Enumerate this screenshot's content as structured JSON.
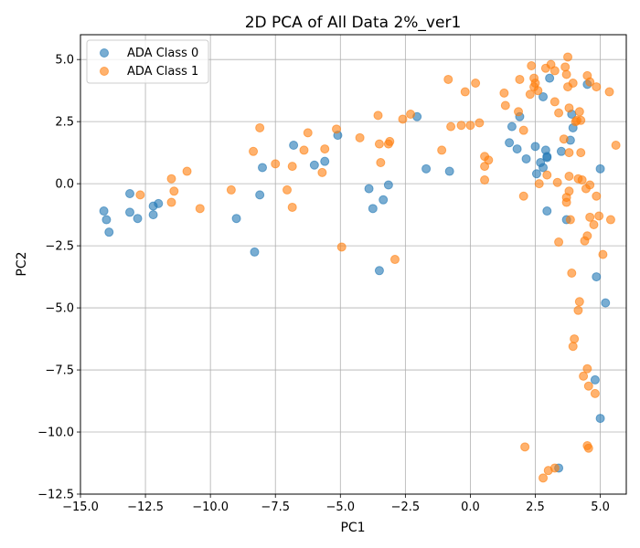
{
  "chart_data": {
    "type": "scatter",
    "title": "2D PCA of All Data 2%_ver1",
    "xlabel": "PC1",
    "ylabel": "PC2",
    "xlim": [
      -15.0,
      6.0
    ],
    "ylim": [
      -12.5,
      6.0
    ],
    "xticks": [
      -15.0,
      -12.5,
      -10.0,
      -7.5,
      -5.0,
      -2.5,
      0.0,
      2.5,
      5.0
    ],
    "yticks": [
      -12.5,
      -10.0,
      -7.5,
      -5.0,
      -2.5,
      0.0,
      2.5,
      5.0
    ],
    "xtick_labels": [
      "−15.0",
      "−12.5",
      "−10.0",
      "−7.5",
      "−5.0",
      "−2.5",
      "0.0",
      "2.5",
      "5.0"
    ],
    "ytick_labels": [
      "−12.5",
      "−10.0",
      "−7.5",
      "−5.0",
      "−2.5",
      "0.0",
      "2.5",
      "5.0"
    ],
    "grid": true,
    "legend_position": "top-left",
    "series": [
      {
        "name": "ADA Class 0",
        "color": "#1f77b4",
        "points": [
          [
            -14.1,
            -1.1
          ],
          [
            -14.0,
            -1.45
          ],
          [
            -13.9,
            -1.95
          ],
          [
            -13.1,
            -0.4
          ],
          [
            -13.1,
            -1.15
          ],
          [
            -12.8,
            -1.4
          ],
          [
            -12.2,
            -0.9
          ],
          [
            -12.2,
            -1.25
          ],
          [
            -12.0,
            -0.8
          ],
          [
            -9.0,
            -1.4
          ],
          [
            -8.3,
            -2.75
          ],
          [
            -8.1,
            -0.45
          ],
          [
            -8.0,
            0.65
          ],
          [
            -6.8,
            1.55
          ],
          [
            -6.0,
            0.75
          ],
          [
            -5.6,
            0.9
          ],
          [
            -5.1,
            1.95
          ],
          [
            -3.9,
            -0.2
          ],
          [
            -3.75,
            -1.0
          ],
          [
            -3.5,
            -3.5
          ],
          [
            -3.35,
            -0.65
          ],
          [
            -3.15,
            -0.05
          ],
          [
            -2.05,
            2.7
          ],
          [
            -1.7,
            0.6
          ],
          [
            -0.8,
            0.5
          ],
          [
            1.5,
            1.65
          ],
          [
            1.6,
            2.3
          ],
          [
            1.8,
            1.4
          ],
          [
            1.9,
            2.7
          ],
          [
            2.15,
            1.0
          ],
          [
            2.5,
            1.5
          ],
          [
            2.55,
            0.4
          ],
          [
            2.7,
            0.85
          ],
          [
            2.8,
            3.5
          ],
          [
            2.8,
            0.65
          ],
          [
            2.9,
            1.35
          ],
          [
            2.95,
            1.05
          ],
          [
            2.95,
            1.1
          ],
          [
            2.95,
            -1.1
          ],
          [
            3.05,
            4.25
          ],
          [
            3.5,
            1.3
          ],
          [
            3.7,
            -1.45
          ],
          [
            3.85,
            1.75
          ],
          [
            3.9,
            2.8
          ],
          [
            3.95,
            2.25
          ],
          [
            4.5,
            4.0
          ],
          [
            4.8,
            -7.9
          ],
          [
            4.85,
            -3.75
          ],
          [
            5.0,
            -9.45
          ],
          [
            5.0,
            0.6
          ],
          [
            5.2,
            -4.8
          ],
          [
            3.4,
            -11.45
          ]
        ]
      },
      {
        "name": "ADA Class 1",
        "color": "#ff7f0e",
        "points": [
          [
            -12.7,
            -0.45
          ],
          [
            -11.5,
            0.2
          ],
          [
            -11.5,
            -0.75
          ],
          [
            -11.4,
            -0.3
          ],
          [
            -10.9,
            0.5
          ],
          [
            -10.4,
            -1.0
          ],
          [
            -9.2,
            -0.25
          ],
          [
            -8.35,
            1.3
          ],
          [
            -8.1,
            2.25
          ],
          [
            -7.5,
            0.8
          ],
          [
            -7.05,
            -0.25
          ],
          [
            -6.85,
            -0.95
          ],
          [
            -6.85,
            0.7
          ],
          [
            -6.4,
            1.35
          ],
          [
            -6.25,
            2.05
          ],
          [
            -5.7,
            0.45
          ],
          [
            -5.6,
            1.4
          ],
          [
            -5.15,
            2.2
          ],
          [
            -4.95,
            -2.55
          ],
          [
            -4.25,
            1.85
          ],
          [
            -3.55,
            2.75
          ],
          [
            -3.5,
            1.6
          ],
          [
            -3.45,
            0.85
          ],
          [
            -3.15,
            1.6
          ],
          [
            -3.1,
            1.7
          ],
          [
            -2.9,
            -3.05
          ],
          [
            -2.6,
            2.6
          ],
          [
            -2.3,
            2.8
          ],
          [
            -1.1,
            1.35
          ],
          [
            -0.85,
            4.2
          ],
          [
            -0.75,
            2.3
          ],
          [
            -0.35,
            2.35
          ],
          [
            -0.2,
            3.7
          ],
          [
            0.0,
            2.35
          ],
          [
            0.2,
            4.05
          ],
          [
            0.35,
            2.45
          ],
          [
            0.55,
            1.1
          ],
          [
            0.55,
            0.7
          ],
          [
            0.55,
            0.15
          ],
          [
            0.7,
            0.95
          ],
          [
            1.3,
            3.65
          ],
          [
            1.35,
            3.15
          ],
          [
            1.85,
            2.9
          ],
          [
            1.9,
            4.2
          ],
          [
            2.05,
            2.15
          ],
          [
            2.05,
            -0.5
          ],
          [
            2.3,
            3.6
          ],
          [
            2.35,
            4.75
          ],
          [
            2.45,
            3.9
          ],
          [
            2.45,
            4.25
          ],
          [
            2.5,
            4.05
          ],
          [
            2.6,
            3.75
          ],
          [
            2.65,
            0.0
          ],
          [
            2.9,
            4.65
          ],
          [
            2.95,
            0.35
          ],
          [
            3.1,
            4.8
          ],
          [
            3.25,
            4.55
          ],
          [
            3.25,
            3.3
          ],
          [
            3.35,
            0.05
          ],
          [
            3.4,
            2.85
          ],
          [
            3.4,
            -2.35
          ],
          [
            3.6,
            1.8
          ],
          [
            3.65,
            4.7
          ],
          [
            3.7,
            -0.75
          ],
          [
            3.7,
            -0.55
          ],
          [
            3.7,
            4.4
          ],
          [
            3.75,
            5.1
          ],
          [
            3.75,
            3.9
          ],
          [
            3.8,
            1.25
          ],
          [
            3.8,
            3.05
          ],
          [
            3.8,
            -0.3
          ],
          [
            3.8,
            0.3
          ],
          [
            3.85,
            -1.45
          ],
          [
            3.9,
            -3.6
          ],
          [
            3.95,
            -6.55
          ],
          [
            3.95,
            4.05
          ],
          [
            4.0,
            -6.25
          ],
          [
            4.05,
            2.5
          ],
          [
            4.1,
            2.55
          ],
          [
            4.15,
            -5.1
          ],
          [
            4.15,
            0.2
          ],
          [
            4.2,
            -4.75
          ],
          [
            4.2,
            2.9
          ],
          [
            4.25,
            2.55
          ],
          [
            4.25,
            1.25
          ],
          [
            4.3,
            0.15
          ],
          [
            4.35,
            -7.75
          ],
          [
            4.4,
            -2.3
          ],
          [
            4.45,
            -0.2
          ],
          [
            4.5,
            4.35
          ],
          [
            4.5,
            -2.1
          ],
          [
            4.5,
            -7.45
          ],
          [
            4.5,
            -10.55
          ],
          [
            4.55,
            -10.65
          ],
          [
            4.55,
            -8.15
          ],
          [
            4.6,
            4.1
          ],
          [
            4.6,
            -1.35
          ],
          [
            4.6,
            -0.05
          ],
          [
            4.75,
            -1.65
          ],
          [
            4.8,
            -8.45
          ],
          [
            4.85,
            3.9
          ],
          [
            4.85,
            -0.5
          ],
          [
            4.95,
            -1.3
          ],
          [
            5.1,
            -2.85
          ],
          [
            5.35,
            3.7
          ],
          [
            5.4,
            -1.45
          ],
          [
            5.6,
            1.55
          ],
          [
            2.1,
            -10.6
          ],
          [
            2.8,
            -11.85
          ],
          [
            3.0,
            -11.55
          ],
          [
            3.25,
            -11.45
          ]
        ]
      }
    ]
  }
}
